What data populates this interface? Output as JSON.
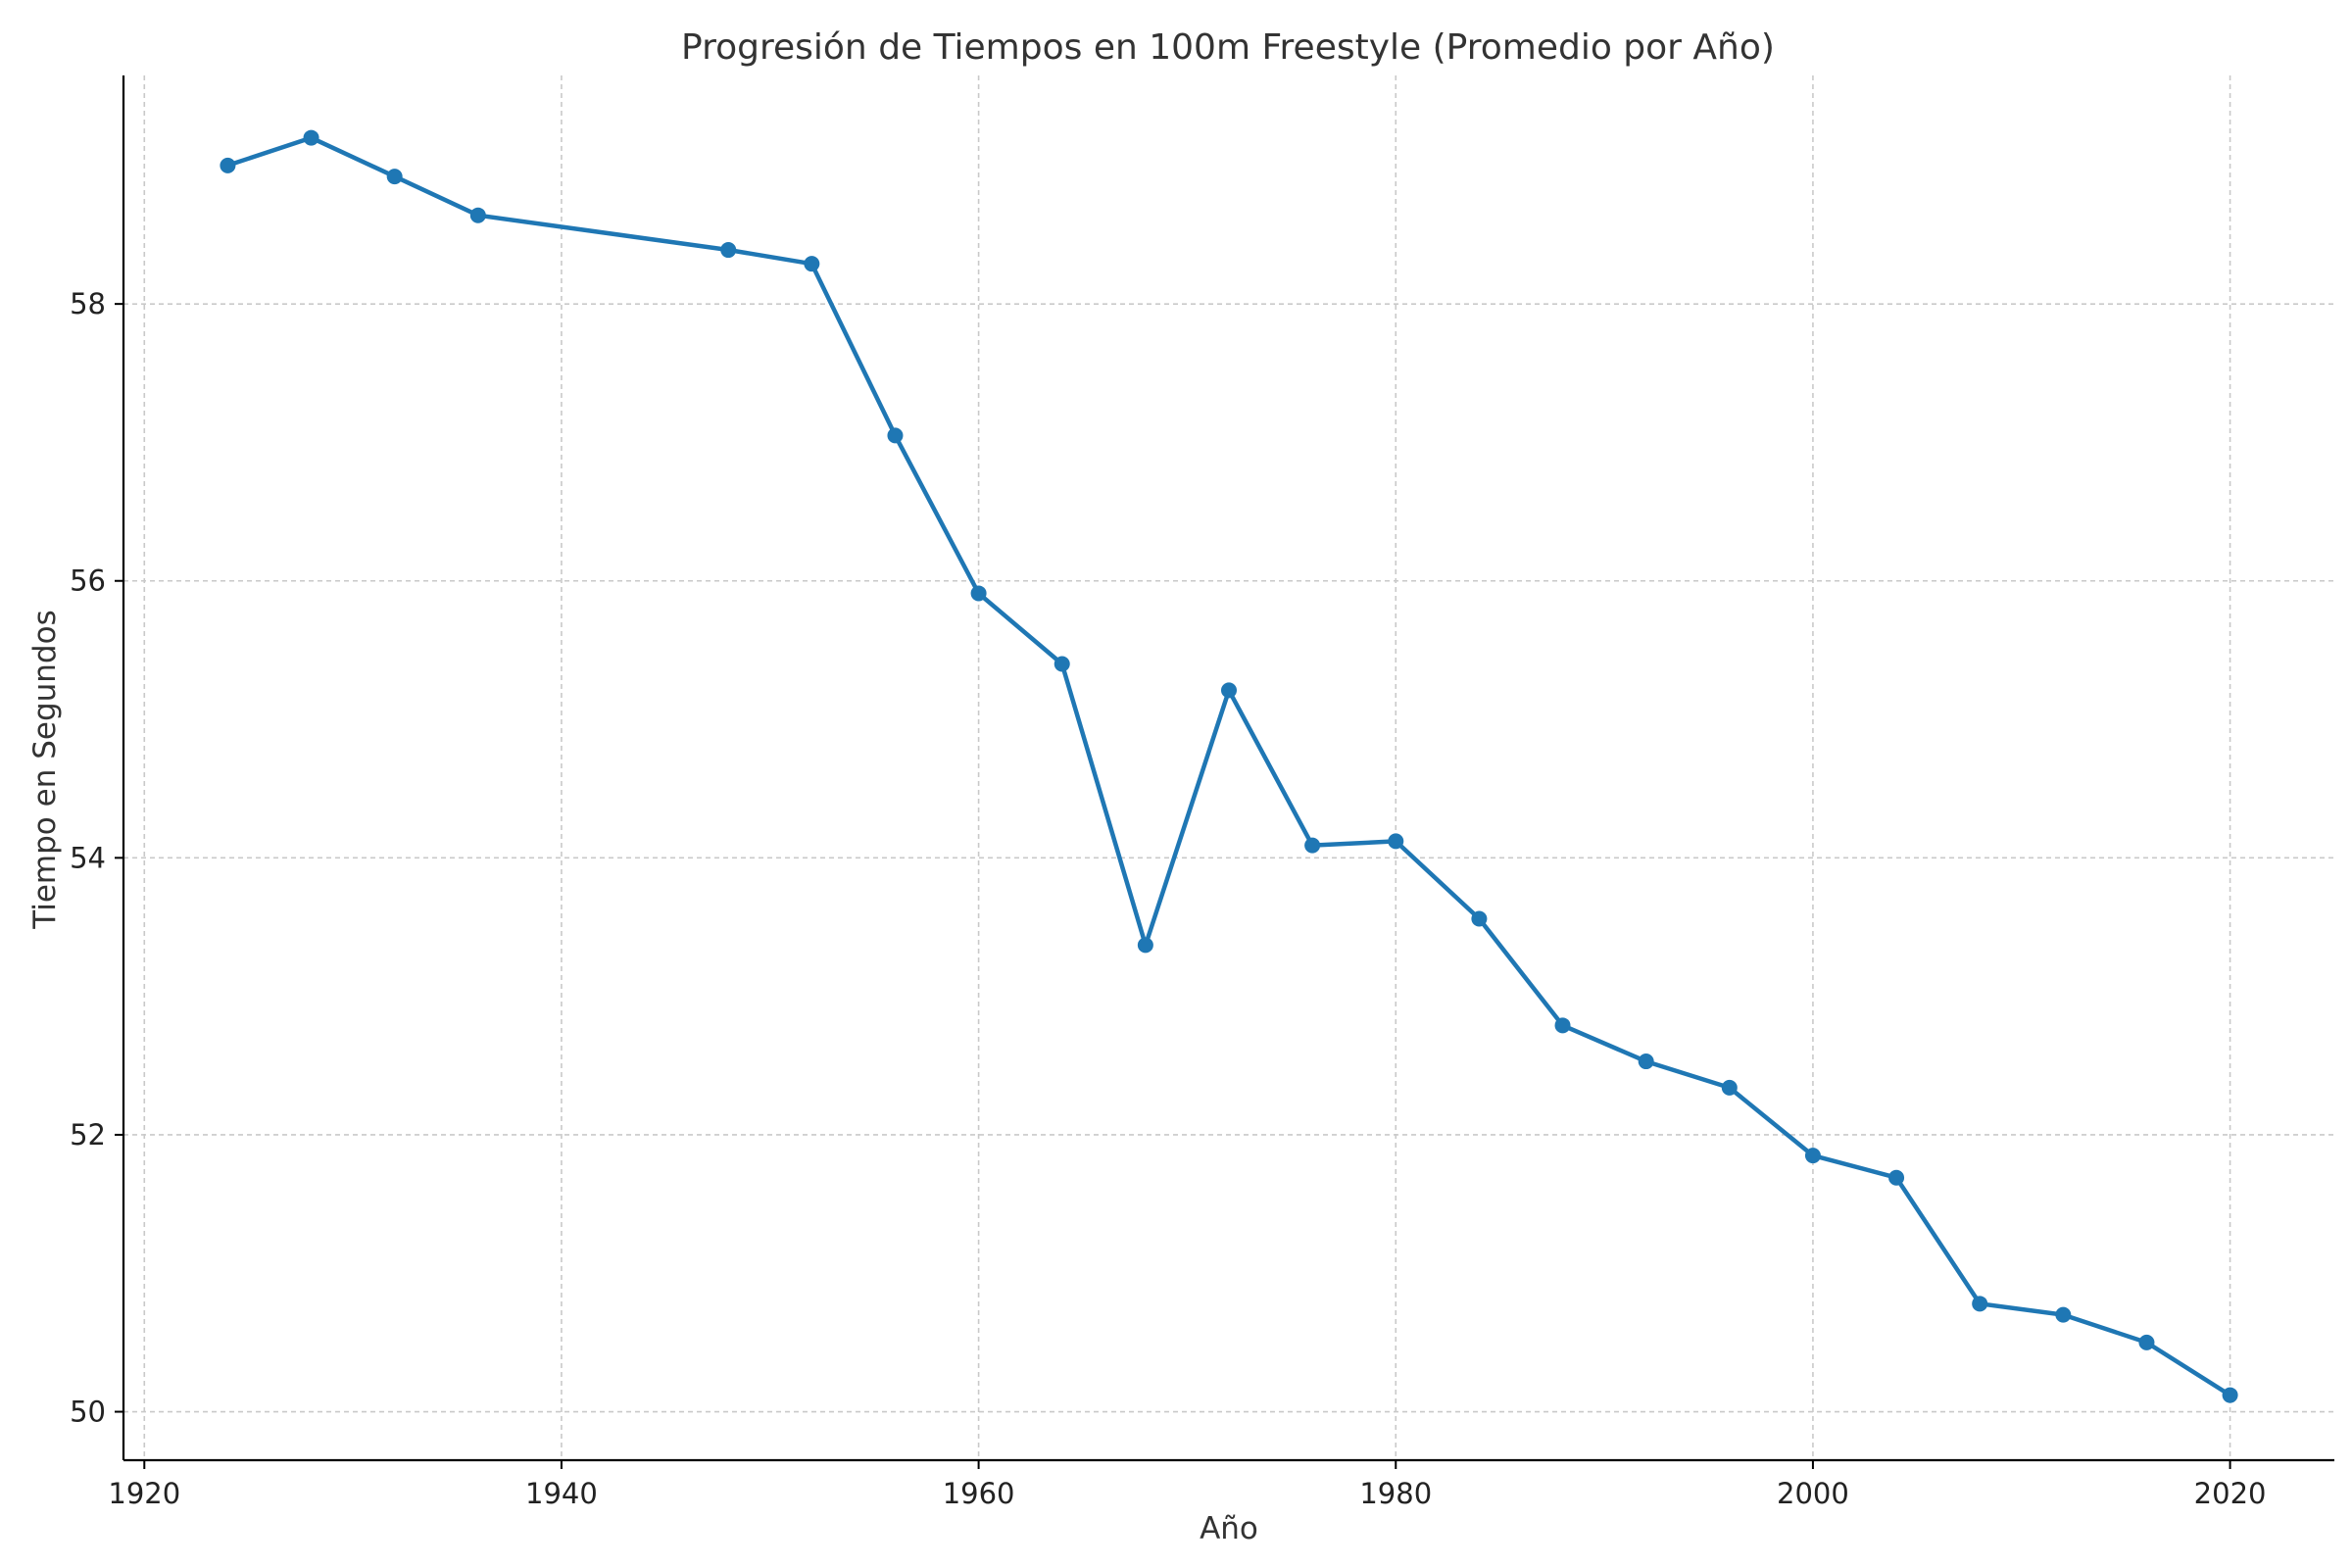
{
  "chart_data": {
    "type": "line",
    "title": "Progresión de Tiempos en 100m Freestyle (Promedio por Año)",
    "xlabel": "Año",
    "ylabel": "Tiempo en Segundos",
    "xlim": [
      1919,
      2025
    ],
    "ylim": [
      49.65,
      59.65
    ],
    "xticks": [
      1920,
      1940,
      1960,
      1980,
      2000,
      2020
    ],
    "yticks": [
      50,
      52,
      54,
      56,
      58
    ],
    "grid": true,
    "color": "#1f77b4",
    "series": [
      {
        "x": [
          1924,
          1928,
          1932,
          1936,
          1948,
          1952,
          1956,
          1960,
          1964,
          1968,
          1972,
          1976,
          1980,
          1984,
          1988,
          1992,
          1996,
          2000,
          2004,
          2008,
          2012,
          2016,
          2020
        ],
        "values": [
          59.0,
          59.2,
          58.92,
          58.64,
          58.39,
          58.29,
          57.05,
          55.91,
          55.4,
          53.37,
          55.21,
          54.09,
          54.12,
          53.56,
          52.79,
          52.53,
          52.34,
          51.85,
          51.69,
          50.78,
          50.7,
          50.5,
          50.12
        ]
      }
    ]
  }
}
